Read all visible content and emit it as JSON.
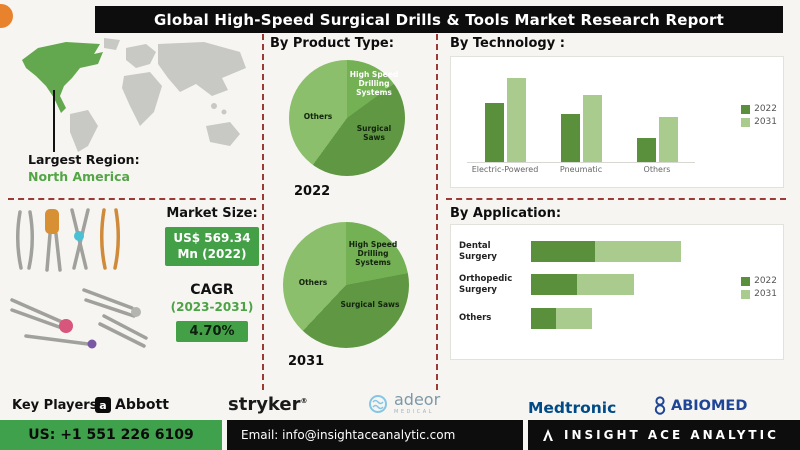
{
  "title": "Global High-Speed Surgical Drills & Tools Market Research Report",
  "left": {
    "largest_region_label": "Largest Region:",
    "largest_region_value": "North America",
    "market_size_label": "Market Size:",
    "market_size_line1": "US$ 569.34",
    "market_size_line2": "Mn (2022)",
    "cagr_label": "CAGR",
    "cagr_period": "(2023-2031)",
    "cagr_value": "4.70%"
  },
  "sections": {
    "product_type": "By  Product Type:",
    "technology": "By Technology :",
    "application": "By Application:"
  },
  "key_players": {
    "label": "Key Players:",
    "abbott": "Abbott",
    "abbott_mark": "a",
    "stryker": "stryker",
    "stryker_reg": "®",
    "adeor": "adeor",
    "adeor_sub": "MEDICAL",
    "medtronic": "Medtronic",
    "abiomed": "ABIOMED"
  },
  "footer": {
    "phone": "US: +1 551 226 6109",
    "email": "Email: info@insightaceanalytic.com",
    "brand": "INSIGHT ACE ANALYTIC"
  },
  "colors": {
    "green_dark": "#5a8f3c",
    "green_light": "#a9cb8d",
    "accent_green": "#43a047",
    "dashed_line": "#9c3b36",
    "map_highlight": "#63a84e"
  },
  "chart_data": [
    {
      "id": "pie-2022",
      "type": "pie",
      "title": "2022",
      "labels": [
        "High Speed Drilling Systems",
        "Surgical Saws",
        "Others"
      ],
      "values": [
        15,
        45,
        40
      ],
      "colors": [
        "#74b054",
        "#5f9743",
        "#8cbf6c"
      ]
    },
    {
      "id": "pie-2031",
      "type": "pie",
      "title": "2031",
      "labels": [
        "High Speed Drilling Systems",
        "Surgical Saws",
        "Others"
      ],
      "values": [
        22,
        40,
        38
      ],
      "colors": [
        "#74b054",
        "#5f9743",
        "#8cbf6c"
      ]
    },
    {
      "id": "tech",
      "type": "bar",
      "title": "By Technology :",
      "categories": [
        "Electric-Powered",
        "Pneumatic",
        "Others"
      ],
      "series": [
        {
          "name": "2022",
          "values": [
            55,
            45,
            22
          ]
        },
        {
          "name": "2031",
          "values": [
            78,
            62,
            42
          ]
        }
      ],
      "colors": [
        "#5a8f3c",
        "#a9cb8d"
      ],
      "legend": [
        "2022",
        "2031"
      ],
      "ylim": [
        0,
        80
      ],
      "legend_position": "right"
    },
    {
      "id": "app",
      "type": "bar-horizontal-stacked",
      "title": "By Application:",
      "categories": [
        "Dental Surgery",
        "Orthopedic Surgery",
        "Others"
      ],
      "series": [
        {
          "name": "2022",
          "values": [
            36,
            26,
            14
          ]
        },
        {
          "name": "2031",
          "values": [
            48,
            32,
            20
          ]
        }
      ],
      "colors": [
        "#5a8f3c",
        "#a9cb8d"
      ],
      "legend": [
        "2022",
        "2031"
      ],
      "legend_position": "right"
    }
  ]
}
